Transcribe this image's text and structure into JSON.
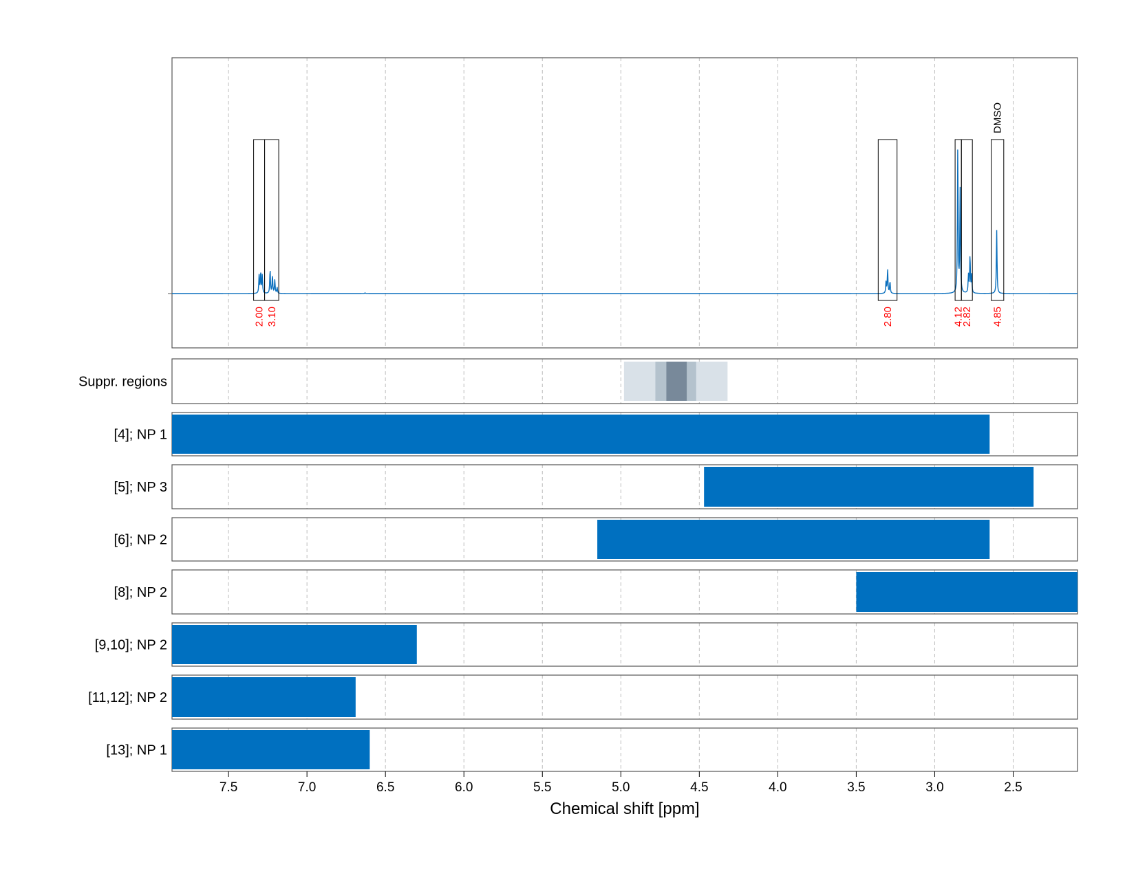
{
  "chart_data": {
    "type": "line",
    "xlabel": "Chemical shift [ppm]",
    "xlim": [
      7.86,
      2.09
    ],
    "x_ticks": [
      7.5,
      7.0,
      6.5,
      6.0,
      5.5,
      5.0,
      4.5,
      4.0,
      3.5,
      3.0,
      2.5
    ],
    "x_tick_labels": [
      "7.5",
      "7.0",
      "6.5",
      "6.0",
      "5.5",
      "5.0",
      "4.5",
      "4.0",
      "3.5",
      "3.0",
      "2.5"
    ],
    "grid": true,
    "spectrum": {
      "baseline_ppm_range": [
        7.86,
        2.09
      ],
      "peaks": [
        {
          "ppm": 7.305,
          "height": 0.12
        },
        {
          "ppm": 7.295,
          "height": 0.14
        },
        {
          "ppm": 7.285,
          "height": 0.12
        },
        {
          "ppm": 7.235,
          "height": 0.16
        },
        {
          "ppm": 7.22,
          "height": 0.12
        },
        {
          "ppm": 7.205,
          "height": 0.09
        },
        {
          "ppm": 7.19,
          "height": 0.04
        },
        {
          "ppm": 6.63,
          "height": 0.005
        },
        {
          "ppm": 3.31,
          "height": 0.08
        },
        {
          "ppm": 3.3,
          "height": 0.16
        },
        {
          "ppm": 3.285,
          "height": 0.08
        },
        {
          "ppm": 2.853,
          "height": 0.96
        },
        {
          "ppm": 2.838,
          "height": 0.68
        },
        {
          "ppm": 2.785,
          "height": 0.12
        },
        {
          "ppm": 2.775,
          "height": 0.25
        },
        {
          "ppm": 2.765,
          "height": 0.12
        },
        {
          "ppm": 2.605,
          "height": 0.42
        }
      ]
    },
    "integration_regions": [
      {
        "from": 7.34,
        "to": 7.27,
        "label": "2.00"
      },
      {
        "from": 7.27,
        "to": 7.18,
        "label": "3.10"
      },
      {
        "from": 3.36,
        "to": 3.24,
        "label": "2.80"
      },
      {
        "from": 2.87,
        "to": 2.83,
        "label": "4.12"
      },
      {
        "from": 2.83,
        "to": 2.76,
        "label": "2.82"
      },
      {
        "from": 2.64,
        "to": 2.56,
        "label": "4.85"
      }
    ],
    "solvent_label": {
      "text": "DMSO",
      "ppm": 2.6
    },
    "suppression": {
      "label": "Suppr. regions",
      "bands": [
        {
          "from": 4.98,
          "to": 4.32,
          "shade": "#d9e1e8"
        },
        {
          "from": 4.78,
          "to": 4.52,
          "shade": "#b4c2cd"
        },
        {
          "from": 4.71,
          "to": 4.58,
          "shade": "#78899a"
        }
      ]
    },
    "rows": [
      {
        "label": "[4]; NP 1",
        "from": 7.86,
        "to": 2.65
      },
      {
        "label": "[5]; NP 3",
        "from": 4.47,
        "to": 2.37
      },
      {
        "label": "[6]; NP 2",
        "from": 5.15,
        "to": 2.65
      },
      {
        "label": "[8]; NP 2",
        "from": 3.5,
        "to": 2.09
      },
      {
        "label": "[9,10]; NP 2",
        "from": 7.86,
        "to": 6.3
      },
      {
        "label": "[11,12]; NP 2",
        "from": 7.86,
        "to": 6.69
      },
      {
        "label": "[13]; NP 1",
        "from": 7.86,
        "to": 6.6
      }
    ],
    "colors": {
      "spectrum": "#0a6fbd",
      "bar": "#0070c0",
      "integral_label": "#ff0000",
      "grid": "#bdbdbd",
      "frame": "#555555"
    }
  }
}
